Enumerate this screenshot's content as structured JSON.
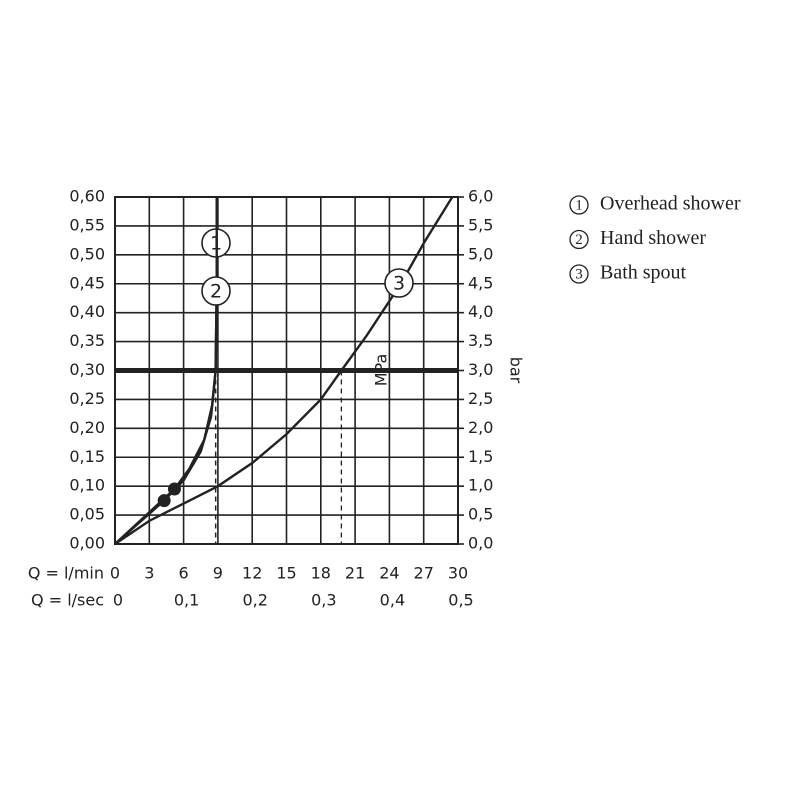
{
  "chart_data": {
    "type": "line",
    "ylabel": "MPa",
    "y2label": "bar",
    "xlabel": "Q = l/min",
    "x2label": "Q = l/sec",
    "xlim": [
      0,
      30
    ],
    "xticks": [
      0,
      3,
      6,
      9,
      12,
      15,
      18,
      21,
      24,
      27,
      30
    ],
    "x2lim": [
      0,
      0.5
    ],
    "x2ticks": [
      0,
      {
        "value": 0.1,
        "label": "0,1"
      },
      {
        "value": 0.2,
        "label": "0,2"
      },
      {
        "value": 0.3,
        "label": "0,3"
      },
      {
        "value": 0.4,
        "label": "0,4"
      },
      {
        "value": 0.5,
        "label": "0,5"
      }
    ],
    "ylim": [
      0,
      0.6
    ],
    "yticks": [
      {
        "value": 0,
        "label": "0,00"
      },
      {
        "value": 0.05,
        "label": "0,05"
      },
      {
        "value": 0.1,
        "label": "0,10"
      },
      {
        "value": 0.15,
        "label": "0,15"
      },
      {
        "value": 0.2,
        "label": "0,20"
      },
      {
        "value": 0.25,
        "label": "0,25"
      },
      {
        "value": 0.3,
        "label": "0,30"
      },
      {
        "value": 0.35,
        "label": "0,35"
      },
      {
        "value": 0.4,
        "label": "0,40"
      },
      {
        "value": 0.45,
        "label": "0,45"
      },
      {
        "value": 0.5,
        "label": "0,50"
      },
      {
        "value": 0.55,
        "label": "0,55"
      },
      {
        "value": 0.6,
        "label": "0,60"
      }
    ],
    "y2lim": [
      0,
      6
    ],
    "y2ticks": [
      {
        "value": 0,
        "label": "0,0"
      },
      {
        "value": 0.5,
        "label": "0,5"
      },
      {
        "value": 1,
        "label": "1,0"
      },
      {
        "value": 1.5,
        "label": "1,5"
      },
      {
        "value": 2,
        "label": "2,0"
      },
      {
        "value": 2.5,
        "label": "2,5"
      },
      {
        "value": 3,
        "label": "3,0"
      },
      {
        "value": 3.5,
        "label": "3,5"
      },
      {
        "value": 4,
        "label": "4,0"
      },
      {
        "value": 4.5,
        "label": "4,5"
      },
      {
        "value": 5,
        "label": "5,0"
      },
      {
        "value": 5.5,
        "label": "5,5"
      },
      {
        "value": 6,
        "label": "6,0"
      }
    ],
    "grid": true,
    "reference_line": 0.3,
    "series": [
      {
        "name": "Overhead shower",
        "label": "1",
        "color": "#222222",
        "x": [
          0,
          5.2,
          6.5,
          7.8,
          8.5,
          8.8,
          8.9,
          8.9
        ],
        "y": [
          0,
          0.095,
          0.13,
          0.18,
          0.24,
          0.3,
          0.45,
          0.6
        ],
        "marker": {
          "x": 5.2,
          "y": 0.095
        }
      },
      {
        "name": "Hand shower",
        "label": "2",
        "color": "#222222",
        "x": [
          0,
          4.3,
          6,
          7.5,
          8.4,
          8.8,
          8.9,
          8.9
        ],
        "y": [
          0,
          0.075,
          0.11,
          0.16,
          0.22,
          0.3,
          0.45,
          0.6
        ],
        "marker": {
          "x": 4.3,
          "y": 0.075
        }
      },
      {
        "name": "Bath spout",
        "label": "3",
        "color": "#222222",
        "x": [
          0,
          3,
          6,
          9,
          12,
          15,
          18,
          19.8,
          22,
          25,
          27,
          29.5
        ],
        "y": [
          0,
          0.04,
          0.07,
          0.1,
          0.14,
          0.19,
          0.25,
          0.3,
          0.36,
          0.45,
          0.52,
          0.6
        ]
      }
    ]
  }
}
